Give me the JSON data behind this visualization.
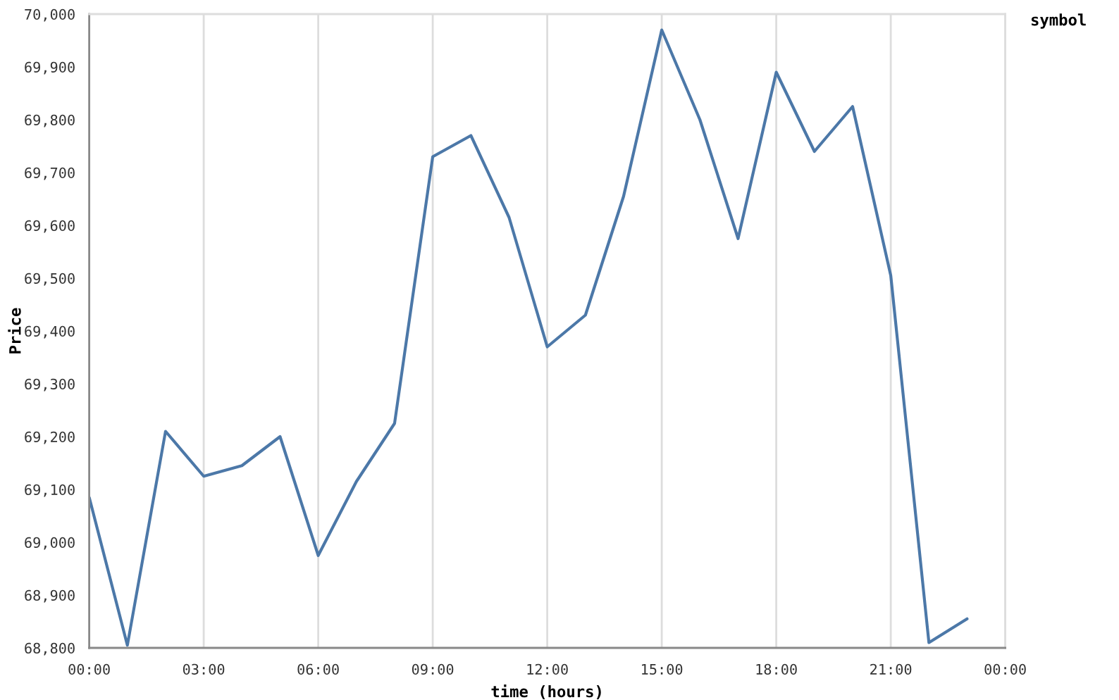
{
  "chart_data": {
    "type": "line",
    "xlabel": "time (hours)",
    "ylabel": "Price",
    "legend_title": "symbol",
    "x": [
      0,
      1,
      2,
      3,
      4,
      5,
      6,
      7,
      8,
      9,
      10,
      11,
      12,
      13,
      14,
      15,
      16,
      17,
      18,
      19,
      20,
      21,
      22,
      23
    ],
    "series": [
      {
        "color": "#4c78a8",
        "values": [
          69085,
          68805,
          69210,
          69125,
          69145,
          69200,
          68975,
          69115,
          69225,
          69730,
          69770,
          69615,
          69370,
          69430,
          69655,
          69970,
          69800,
          69575,
          69890,
          69740,
          69825,
          69505,
          68810,
          68855
        ]
      }
    ],
    "xlim": [
      0,
      24
    ],
    "xticks": [
      {
        "value": 0,
        "label": "00:00"
      },
      {
        "value": 3,
        "label": "03:00"
      },
      {
        "value": 6,
        "label": "06:00"
      },
      {
        "value": 9,
        "label": "09:00"
      },
      {
        "value": 12,
        "label": "12:00"
      },
      {
        "value": 15,
        "label": "15:00"
      },
      {
        "value": 18,
        "label": "18:00"
      },
      {
        "value": 21,
        "label": "21:00"
      },
      {
        "value": 24,
        "label": "00:00"
      }
    ],
    "ylim": [
      68800,
      70000
    ],
    "yticks": [
      {
        "value": 68800,
        "label": "68,800"
      },
      {
        "value": 68900,
        "label": "68,900"
      },
      {
        "value": 69000,
        "label": "69,000"
      },
      {
        "value": 69100,
        "label": "69,100"
      },
      {
        "value": 69200,
        "label": "69,200"
      },
      {
        "value": 69300,
        "label": "69,300"
      },
      {
        "value": 69400,
        "label": "69,400"
      },
      {
        "value": 69500,
        "label": "69,500"
      },
      {
        "value": 69600,
        "label": "69,600"
      },
      {
        "value": 69700,
        "label": "69,700"
      },
      {
        "value": 69800,
        "label": "69,800"
      },
      {
        "value": 69900,
        "label": "69,900"
      },
      {
        "value": 70000,
        "label": "70,000"
      }
    ],
    "grid": "x",
    "line_style": "solid"
  }
}
